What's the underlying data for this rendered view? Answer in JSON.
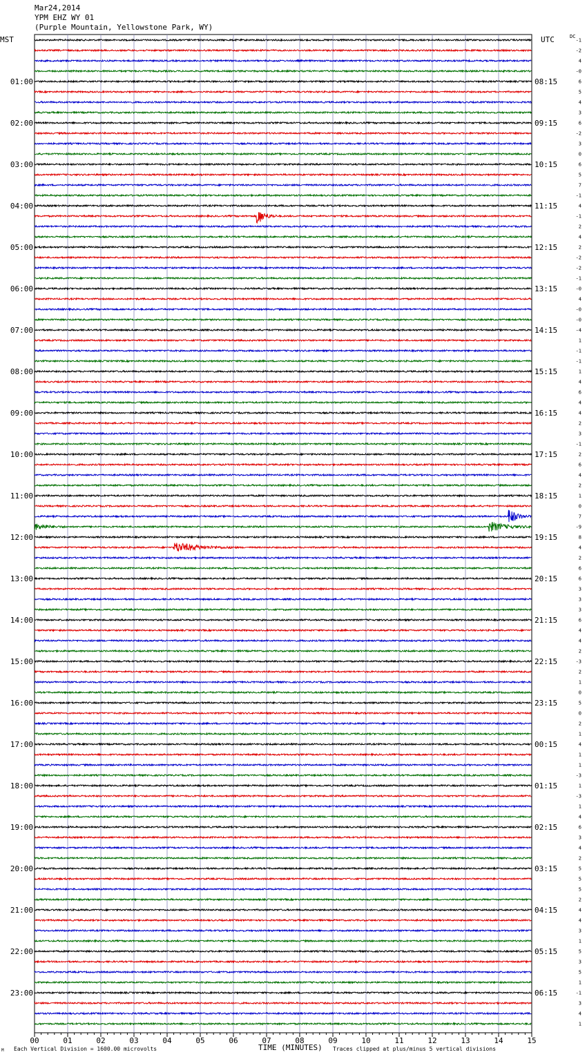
{
  "header": {
    "date": "Mar24,2014",
    "station": "YPM EHZ WY 01",
    "location": "(Purple Mountain, Yellowstone Park, WY)"
  },
  "corners": {
    "left_tz": "MST",
    "right_tz": "UTC",
    "dc_label": "DC"
  },
  "footer": {
    "scale_text": "Each Vertical Division = 1600.00 microvolts",
    "axis_title": "TIME (MINUTES)",
    "clip_text": "Traces clipped at plus/minus 5 vertical divisions",
    "mark": "M"
  },
  "chart_data": {
    "type": "line",
    "xlabel": "TIME (MINUTES)",
    "xlim": [
      0,
      15
    ],
    "x_ticks": [
      "00",
      "01",
      "02",
      "03",
      "04",
      "05",
      "06",
      "07",
      "08",
      "09",
      "10",
      "11",
      "12",
      "13",
      "14",
      "15"
    ],
    "trace_colors": [
      "#000000",
      "#e00000",
      "#0000cc",
      "#007000"
    ],
    "traces_per_hour": 4,
    "minutes_per_trace": 15,
    "left_hour_labels": [
      "01:00",
      "02:00",
      "03:00",
      "04:00",
      "05:00",
      "06:00",
      "07:00",
      "08:00",
      "09:00",
      "10:00",
      "11:00",
      "12:00",
      "13:00",
      "14:00",
      "15:00",
      "16:00",
      "17:00",
      "18:00",
      "19:00",
      "20:00",
      "21:00",
      "22:00",
      "23:00"
    ],
    "right_hour_labels": [
      "08:15",
      "09:15",
      "10:15",
      "11:15",
      "12:15",
      "13:15",
      "14:15",
      "15:15",
      "16:15",
      "17:15",
      "18:15",
      "19:15",
      "20:15",
      "21:15",
      "22:15",
      "23:15",
      "00:15",
      "01:15",
      "02:15",
      "03:15",
      "04:15",
      "05:15",
      "06:15"
    ],
    "dc_offsets": [
      "-1",
      "-2",
      "4",
      "-0",
      "6",
      "5",
      "4",
      "3",
      "6",
      "-2",
      "3",
      "0",
      "6",
      "5",
      "7",
      "-1",
      "4",
      "-1",
      "2",
      "4",
      "2",
      "-2",
      "-2",
      "-1",
      "-0",
      "4",
      "-0",
      "-0",
      "-4",
      "1",
      "-1",
      "-1",
      "1",
      "4",
      "6",
      "4",
      "4",
      "2",
      "3",
      "-1",
      "2",
      "6",
      "4",
      "2",
      "1",
      "0",
      "7",
      "-9",
      "8",
      "4",
      "2",
      "6",
      "6",
      "3",
      "3",
      "3",
      "6",
      "4",
      "4",
      "2",
      "-3",
      "2",
      "1",
      "0",
      "5",
      "0",
      "2",
      "1",
      "4",
      "1",
      "1",
      "-3",
      "1",
      "-3",
      "1",
      "4",
      "6",
      "3",
      "4",
      "2",
      "5",
      "5",
      "5",
      "2",
      "4",
      "4",
      "3",
      "1",
      "5",
      "3",
      "5",
      "1",
      "-1",
      "3",
      "4",
      "1"
    ],
    "events": [
      {
        "trace": 17,
        "start_min": 6.7,
        "duration_min": 0.6,
        "amplitude_div": 3.5
      },
      {
        "trace": 47,
        "start_min": 0.0,
        "duration_min": 1.0,
        "amplitude_div": 1.2
      },
      {
        "trace": 46,
        "start_min": 14.3,
        "duration_min": 0.7,
        "amplitude_div": 3.0
      },
      {
        "trace": 47,
        "start_min": 13.7,
        "duration_min": 1.3,
        "amplitude_div": 2.0
      },
      {
        "trace": 49,
        "start_min": 4.2,
        "duration_min": 1.9,
        "amplitude_div": 2.0
      }
    ]
  }
}
